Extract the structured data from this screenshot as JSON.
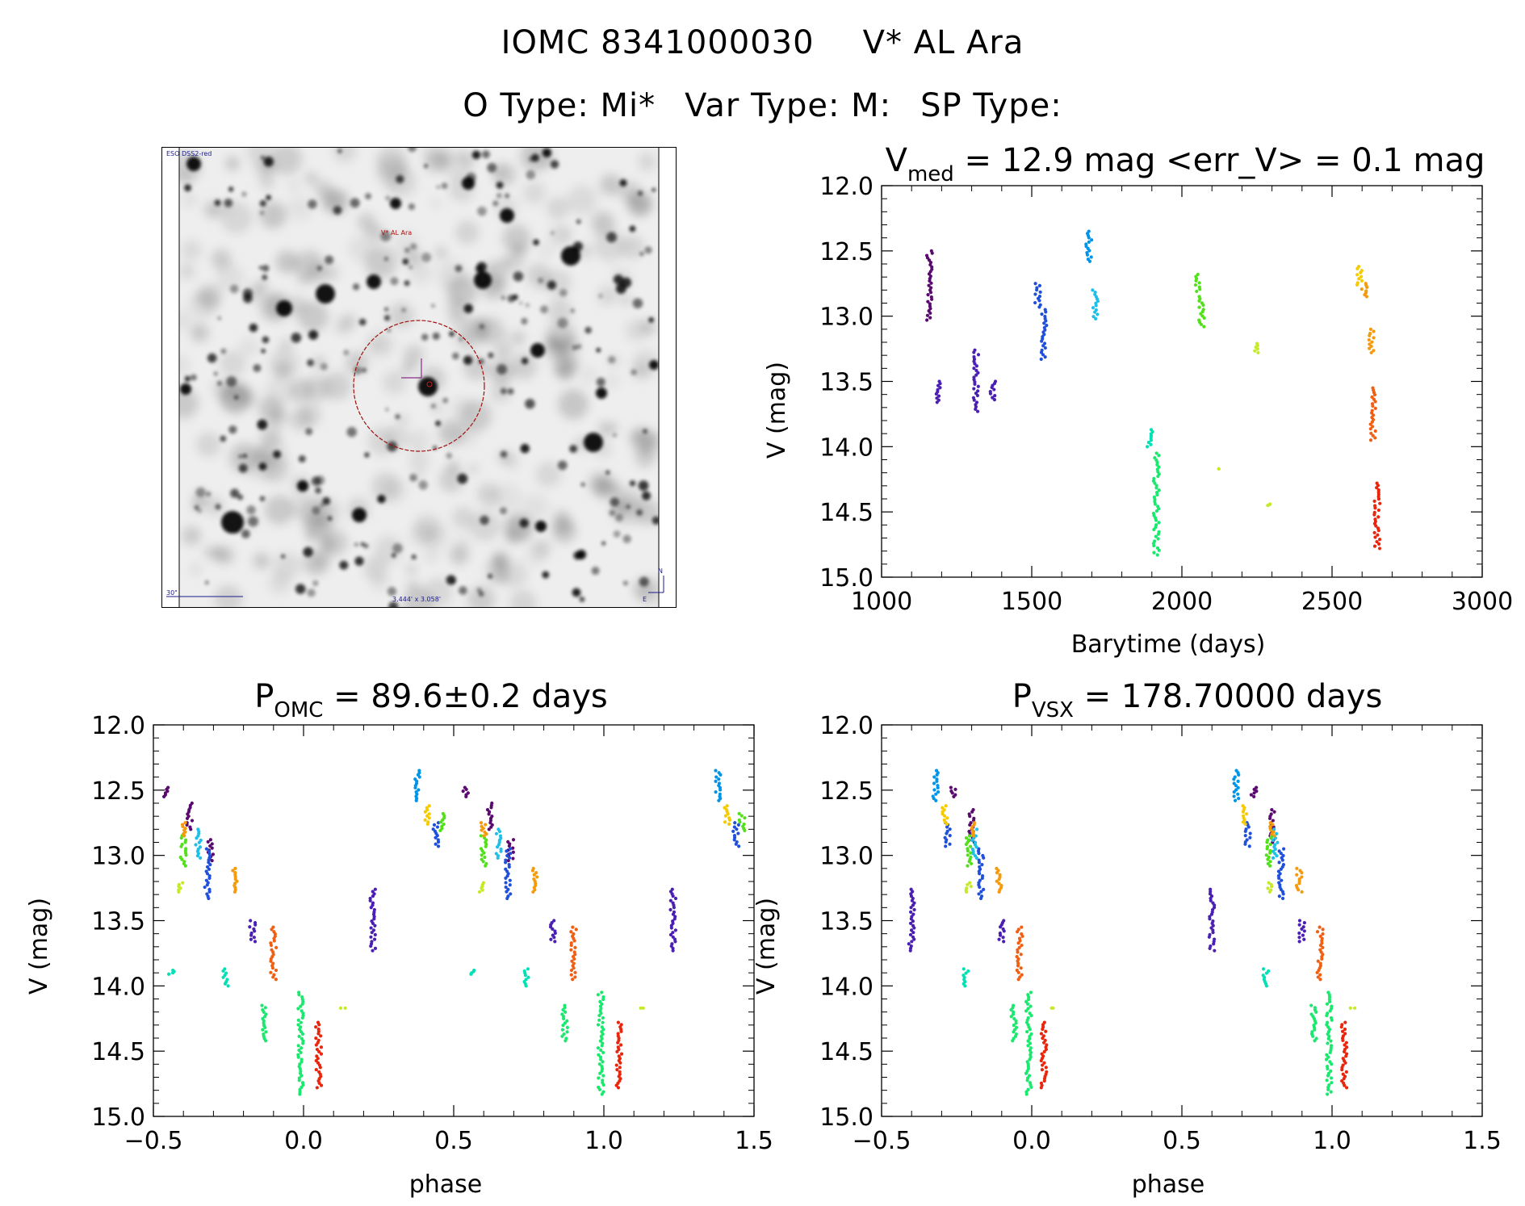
{
  "header": {
    "line1_id": "IOMC 8341000030",
    "line1_name": "V* AL Ara",
    "line2_otype": "O Type: Mi*",
    "line2_vartype": "Var Type: M:",
    "line2_sptype": "SP Type:"
  },
  "finder_image": {
    "survey_label": "ESO DSS2-red",
    "target_label": "V* AL Ara",
    "scale_label": "30\"",
    "fov_label": "3.444' x 3.058'",
    "north_label": "N",
    "east_label": "E"
  },
  "colors": {
    "c0": "#5a0a6e",
    "c1": "#4b1fb3",
    "c2": "#1f50dc",
    "c3": "#0094e8",
    "c4": "#1fbfe8",
    "c5": "#00e0b5",
    "c6": "#1be86e",
    "c7": "#52e01a",
    "c8": "#c5ea28",
    "c9": "#f5cb00",
    "c10": "#f59a0a",
    "c11": "#f06014",
    "c12": "#e8260d",
    "axis": "#000000"
  },
  "chart_data": [
    {
      "type": "scatter",
      "id": "lightcurve",
      "title_main": "V",
      "title_sub": "med",
      "title_rest": " = 12.9 mag <err_V> = 0.1 mag",
      "xlabel": "Barytime (days)",
      "ylabel": "V (mag)",
      "xlim": [
        1000,
        3000
      ],
      "ylim": [
        15.0,
        12.0
      ],
      "y_reversed": true,
      "xticks": [
        1000,
        1500,
        2000,
        2500,
        3000
      ],
      "xtick_labels": [
        "1000",
        "1500",
        "2000",
        "2500",
        "3000"
      ],
      "yticks": [
        12.0,
        12.5,
        13.0,
        13.5,
        14.0,
        14.5,
        15.0
      ],
      "ytick_labels": [
        "12.0",
        "12.5",
        "13.0",
        "13.5",
        "14.0",
        "14.5",
        "15.0"
      ],
      "series": [
        {
          "name": "epoch1",
          "color": "c0",
          "x": 1160,
          "ymin": 12.5,
          "ymax": 13.03
        },
        {
          "name": "epoch2",
          "color": "c1",
          "x": 1190,
          "ymin": 13.5,
          "ymax": 13.66
        },
        {
          "name": "epoch3",
          "color": "c1",
          "x": 1315,
          "ymin": 13.26,
          "ymax": 13.73
        },
        {
          "name": "epoch4",
          "color": "c1",
          "x": 1370,
          "ymin": 13.5,
          "ymax": 13.64
        },
        {
          "name": "epoch5",
          "color": "c2",
          "x": 1520,
          "ymin": 12.75,
          "ymax": 12.93
        },
        {
          "name": "epoch6",
          "color": "c2",
          "x": 1540,
          "ymin": 12.95,
          "ymax": 13.33
        },
        {
          "name": "epoch7",
          "color": "c3",
          "x": 1690,
          "ymin": 12.35,
          "ymax": 12.58
        },
        {
          "name": "epoch8",
          "color": "c4",
          "x": 1712,
          "ymin": 12.8,
          "ymax": 13.02
        },
        {
          "name": "epoch9",
          "color": "c5",
          "x": 1893,
          "ymin": 13.87,
          "ymax": 14.0
        },
        {
          "name": "epoch10",
          "color": "c6",
          "x": 1915,
          "ymin": 14.05,
          "ymax": 14.83
        },
        {
          "name": "epoch11",
          "color": "c7",
          "x": 2052,
          "ymin": 12.68,
          "ymax": 12.81
        },
        {
          "name": "epoch12",
          "color": "c7",
          "x": 2065,
          "ymin": 12.85,
          "ymax": 13.08
        },
        {
          "name": "epoch13",
          "color": "c8",
          "x": 2115,
          "ymin": 14.17,
          "ymax": 14.17
        },
        {
          "name": "epoch14",
          "color": "c8",
          "x": 2250,
          "ymin": 13.21,
          "ymax": 13.28
        },
        {
          "name": "epoch15",
          "color": "c8",
          "x": 2285,
          "ymin": 14.44,
          "ymax": 14.45
        },
        {
          "name": "epoch16",
          "color": "c9",
          "x": 2592,
          "ymin": 12.62,
          "ymax": 12.76
        },
        {
          "name": "epoch17",
          "color": "c10",
          "x": 2608,
          "ymin": 12.75,
          "ymax": 12.85
        },
        {
          "name": "epoch18",
          "color": "c10",
          "x": 2630,
          "ymin": 13.1,
          "ymax": 13.28
        },
        {
          "name": "epoch19",
          "color": "c11",
          "x": 2637,
          "ymin": 13.55,
          "ymax": 13.95
        },
        {
          "name": "epoch20",
          "color": "c12",
          "x": 2650,
          "ymin": 14.28,
          "ymax": 14.78
        }
      ]
    },
    {
      "type": "scatter",
      "id": "phase_omc",
      "title_main": "P",
      "title_sub": "OMC",
      "title_rest": " = 89.6±0.2 days",
      "xlabel": "phase",
      "ylabel": "V (mag)",
      "xlim": [
        -0.5,
        1.5
      ],
      "ylim": [
        15.0,
        12.0
      ],
      "y_reversed": true,
      "xticks": [
        -0.5,
        0.0,
        0.5,
        1.0,
        1.5
      ],
      "xtick_labels": [
        "−0.5",
        "0.0",
        "0.5",
        "1.0",
        "1.5"
      ],
      "yticks": [
        12.0,
        12.5,
        13.0,
        13.5,
        14.0,
        14.5,
        15.0
      ],
      "ytick_labels": [
        "12.0",
        "12.5",
        "13.0",
        "13.5",
        "14.0",
        "14.5",
        "15.0"
      ],
      "repeat_period": 1.0,
      "series": [
        {
          "name": "epoch1",
          "color": "c0",
          "x": -0.38,
          "ymin": 12.6,
          "ymax": 12.8
        },
        {
          "name": "epoch1b",
          "color": "c0",
          "x": -0.46,
          "ymin": 12.48,
          "ymax": 12.55
        },
        {
          "name": "epoch1c",
          "color": "c0",
          "x": -0.31,
          "ymin": 12.88,
          "ymax": 13.04
        },
        {
          "name": "epoch3",
          "color": "c1",
          "x": -0.17,
          "ymin": 13.5,
          "ymax": 13.66
        },
        {
          "name": "epoch3b",
          "color": "c1",
          "x": 0.23,
          "ymin": 13.26,
          "ymax": 13.73
        },
        {
          "name": "epoch5",
          "color": "c2",
          "x": 0.44,
          "ymin": 12.75,
          "ymax": 12.93
        },
        {
          "name": "epoch6",
          "color": "c2",
          "x": -0.32,
          "ymin": 12.95,
          "ymax": 13.33
        },
        {
          "name": "epoch7",
          "color": "c3",
          "x": 0.38,
          "ymin": 12.35,
          "ymax": 12.58
        },
        {
          "name": "epoch8",
          "color": "c4",
          "x": -0.35,
          "ymin": 12.8,
          "ymax": 13.02
        },
        {
          "name": "epoch9",
          "color": "c5",
          "x": -0.26,
          "ymin": 13.87,
          "ymax": 14.0
        },
        {
          "name": "epoch9b",
          "color": "c5",
          "x": -0.44,
          "ymin": 13.88,
          "ymax": 13.91
        },
        {
          "name": "epoch10",
          "color": "c6",
          "x": -0.01,
          "ymin": 14.05,
          "ymax": 14.83
        },
        {
          "name": "epoch10b",
          "color": "c6",
          "x": -0.13,
          "ymin": 14.15,
          "ymax": 14.42
        },
        {
          "name": "epoch11",
          "color": "c7",
          "x": -0.4,
          "ymin": 12.85,
          "ymax": 13.08
        },
        {
          "name": "epoch11b",
          "color": "c7",
          "x": 0.46,
          "ymin": 12.68,
          "ymax": 12.81
        },
        {
          "name": "epoch13",
          "color": "c8",
          "x": 0.13,
          "ymin": 14.17,
          "ymax": 14.17
        },
        {
          "name": "epoch14",
          "color": "c8",
          "x": -0.41,
          "ymin": 13.21,
          "ymax": 13.28
        },
        {
          "name": "epoch16",
          "color": "c9",
          "x": 0.41,
          "ymin": 12.62,
          "ymax": 12.76
        },
        {
          "name": "epoch17",
          "color": "c10",
          "x": -0.4,
          "ymin": 12.75,
          "ymax": 12.85
        },
        {
          "name": "epoch18",
          "color": "c10",
          "x": -0.23,
          "ymin": 13.1,
          "ymax": 13.28
        },
        {
          "name": "epoch19",
          "color": "c11",
          "x": -0.1,
          "ymin": 13.55,
          "ymax": 13.95
        },
        {
          "name": "epoch20",
          "color": "c12",
          "x": 0.05,
          "ymin": 14.28,
          "ymax": 14.78
        }
      ]
    },
    {
      "type": "scatter",
      "id": "phase_vsx",
      "title_main": "P",
      "title_sub": "VSX",
      "title_rest": " = 178.70000 days",
      "xlabel": "phase",
      "ylabel": "V (mag)",
      "xlim": [
        -0.5,
        1.5
      ],
      "ylim": [
        15.0,
        12.0
      ],
      "y_reversed": true,
      "xticks": [
        -0.5,
        0.0,
        0.5,
        1.0,
        1.5
      ],
      "xtick_labels": [
        "−0.5",
        "0.0",
        "0.5",
        "1.0",
        "1.5"
      ],
      "yticks": [
        12.0,
        12.5,
        13.0,
        13.5,
        14.0,
        14.5,
        15.0
      ],
      "ytick_labels": [
        "12.0",
        "12.5",
        "13.0",
        "13.5",
        "14.0",
        "14.5",
        "15.0"
      ],
      "repeat_period": 1.0,
      "max_x": 1.08,
      "series": [
        {
          "name": "epoch1",
          "color": "c0",
          "x": -0.2,
          "ymin": 12.65,
          "ymax": 12.9
        },
        {
          "name": "epoch1b",
          "color": "c0",
          "x": -0.26,
          "ymin": 12.48,
          "ymax": 12.55
        },
        {
          "name": "epoch3",
          "color": "c1",
          "x": -0.4,
          "ymin": 13.26,
          "ymax": 13.73
        },
        {
          "name": "epoch4",
          "color": "c1",
          "x": -0.1,
          "ymin": 13.5,
          "ymax": 13.66
        },
        {
          "name": "epoch5",
          "color": "c2",
          "x": -0.28,
          "ymin": 12.75,
          "ymax": 12.93
        },
        {
          "name": "epoch6",
          "color": "c2",
          "x": -0.17,
          "ymin": 12.95,
          "ymax": 13.33
        },
        {
          "name": "epoch7",
          "color": "c3",
          "x": -0.32,
          "ymin": 12.35,
          "ymax": 12.58
        },
        {
          "name": "epoch8",
          "color": "c4",
          "x": -0.19,
          "ymin": 12.8,
          "ymax": 13.02
        },
        {
          "name": "epoch9",
          "color": "c5",
          "x": -0.22,
          "ymin": 13.87,
          "ymax": 14.0
        },
        {
          "name": "epoch10",
          "color": "c6",
          "x": -0.01,
          "ymin": 14.05,
          "ymax": 14.83
        },
        {
          "name": "epoch10b",
          "color": "c6",
          "x": -0.06,
          "ymin": 14.15,
          "ymax": 14.42
        },
        {
          "name": "epoch11",
          "color": "c7",
          "x": -0.21,
          "ymin": 12.85,
          "ymax": 13.08
        },
        {
          "name": "epoch13",
          "color": "c8",
          "x": 0.07,
          "ymin": 14.17,
          "ymax": 14.17
        },
        {
          "name": "epoch14",
          "color": "c8",
          "x": -0.21,
          "ymin": 13.21,
          "ymax": 13.28
        },
        {
          "name": "epoch16",
          "color": "c9",
          "x": -0.29,
          "ymin": 12.62,
          "ymax": 12.76
        },
        {
          "name": "epoch17",
          "color": "c10",
          "x": -0.2,
          "ymin": 12.75,
          "ymax": 12.85
        },
        {
          "name": "epoch18",
          "color": "c10",
          "x": -0.11,
          "ymin": 13.1,
          "ymax": 13.28
        },
        {
          "name": "epoch19",
          "color": "c11",
          "x": -0.04,
          "ymin": 13.55,
          "ymax": 13.95
        },
        {
          "name": "epoch20",
          "color": "c12",
          "x": 0.04,
          "ymin": 14.28,
          "ymax": 14.78
        }
      ]
    }
  ]
}
